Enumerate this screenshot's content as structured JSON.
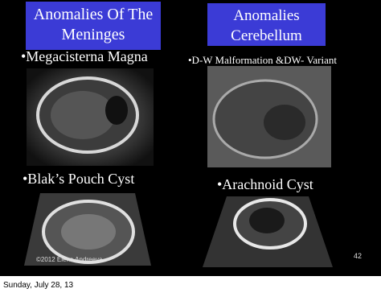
{
  "slide": {
    "left": {
      "heading": [
        "Anomalies Of The",
        "Meninges"
      ],
      "items": [
        "•Megacisterna Magna",
        "•Blak’s Pouch Cyst"
      ]
    },
    "right": {
      "heading": [
        "Anomalies",
        "Cerebellum"
      ],
      "items": [
        "•D-W Malformation &DW- Variant",
        "•Arachnoid Cyst"
      ]
    },
    "credit": "©2012 Elena Andreeva",
    "page_number": "42"
  },
  "footer": {
    "date": "Sunday, July 28, 13"
  }
}
